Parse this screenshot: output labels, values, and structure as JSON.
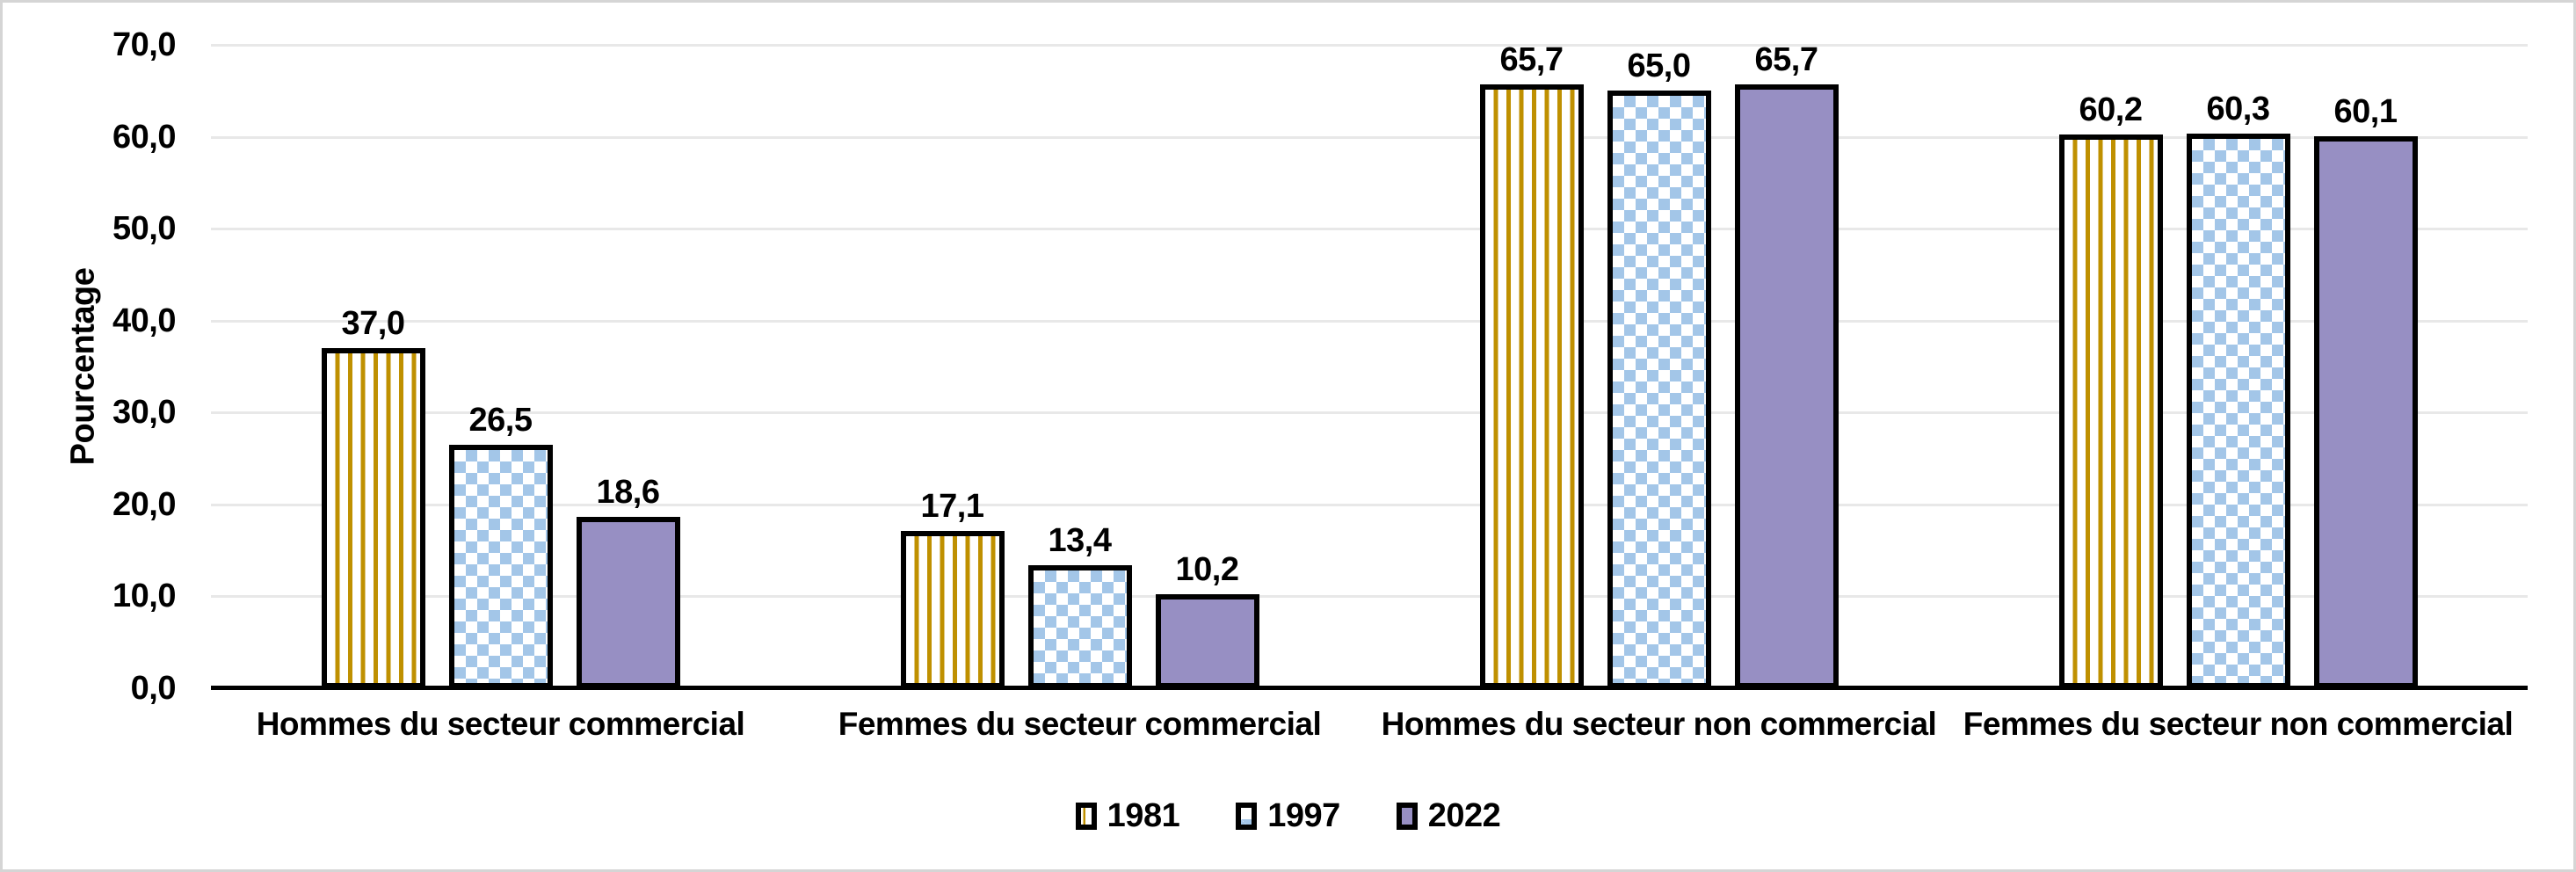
{
  "figure": {
    "background": "#ffffff",
    "border_color": "#d5d5d5",
    "grid_color": "#e8e8e8",
    "axis_color": "#000000"
  },
  "chart_data": {
    "type": "bar",
    "title": "",
    "xlabel": "",
    "ylabel": "Pourcentage",
    "ylim": [
      0,
      70
    ],
    "ytick_labels": [
      "0,0",
      "10,0",
      "20,0",
      "30,0",
      "40,0",
      "50,0",
      "60,0",
      "70,0"
    ],
    "grid": true,
    "legend_position": "bottom",
    "categories": [
      "Hommes du secteur commercial",
      "Femmes du secteur commercial",
      "Hommes du secteur non commercial",
      "Femmes du secteur non commercial"
    ],
    "series": [
      {
        "name": "1981",
        "pattern": "vertical-stripes",
        "color": "#bf9000",
        "values": [
          37.0,
          17.1,
          65.7,
          60.2
        ],
        "labels": [
          "37,0",
          "17,1",
          "65,7",
          "60,2"
        ]
      },
      {
        "name": "1997",
        "pattern": "checker",
        "color": "#a3c6e8",
        "values": [
          26.5,
          13.4,
          65.0,
          60.3
        ],
        "labels": [
          "26,5",
          "13,4",
          "65,0",
          "60,3"
        ]
      },
      {
        "name": "2022",
        "pattern": "solid",
        "color": "#978fc3",
        "values": [
          18.6,
          10.2,
          65.7,
          60.1
        ],
        "labels": [
          "18,6",
          "10,2",
          "65,7",
          "60,1"
        ]
      }
    ]
  }
}
